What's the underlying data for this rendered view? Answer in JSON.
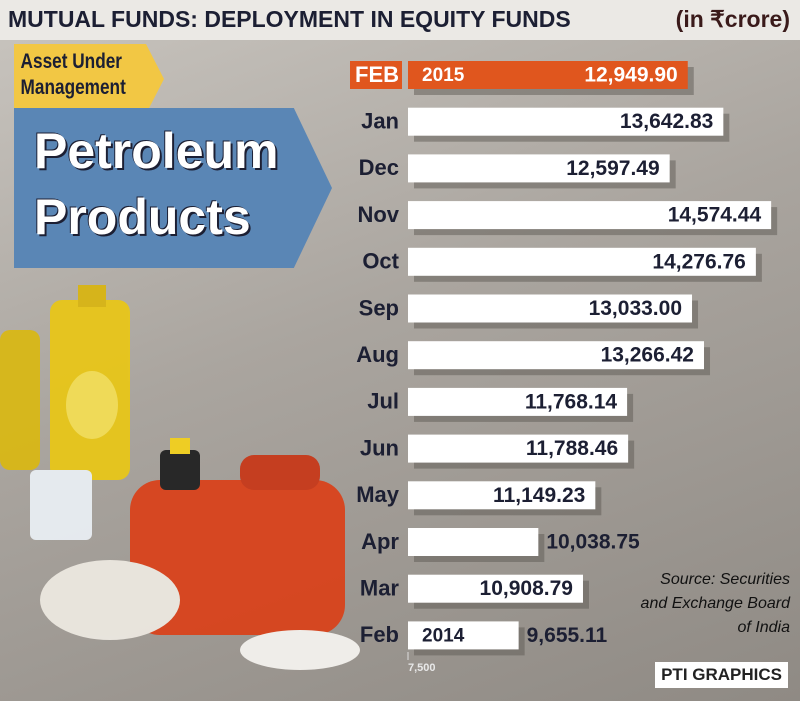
{
  "chart_data": {
    "type": "bar",
    "orientation": "horizontal",
    "title": "MUTUAL FUNDS: DEPLOYMENT IN EQUITY FUNDS",
    "unit": "(in ₹crore)",
    "tag": "Asset Under Management",
    "heading": "Petroleum Products",
    "categories": [
      "FEB",
      "Jan",
      "Dec",
      "Nov",
      "Oct",
      "Sep",
      "Aug",
      "Jul",
      "Jun",
      "May",
      "Apr",
      "Mar",
      "Feb"
    ],
    "year_labels": [
      "2015",
      "2014"
    ],
    "values": [
      12949.9,
      13642.83,
      12597.49,
      14574.44,
      14276.76,
      13033.0,
      13266.42,
      11768.14,
      11788.46,
      11149.23,
      10038.75,
      10908.79,
      9655.11
    ],
    "value_labels": [
      "12,949.90",
      "13,642.83",
      "12,597.49",
      "14,574.44",
      "14,276.76",
      "13,033.00",
      "13,266.42",
      "11,768.14",
      "11,788.46",
      "11,149.23",
      "10,038.75",
      "10,908.79",
      "9,655.11"
    ],
    "color": "#ffffff",
    "highlight_color": "#e0561e",
    "xlim": [
      7500,
      15000
    ],
    "xticks": [
      {
        "value": 7500,
        "label": "7,500"
      }
    ],
    "source": "Source: Securities and Exchange Board of India",
    "credit": "PTI GRAPHICS"
  }
}
